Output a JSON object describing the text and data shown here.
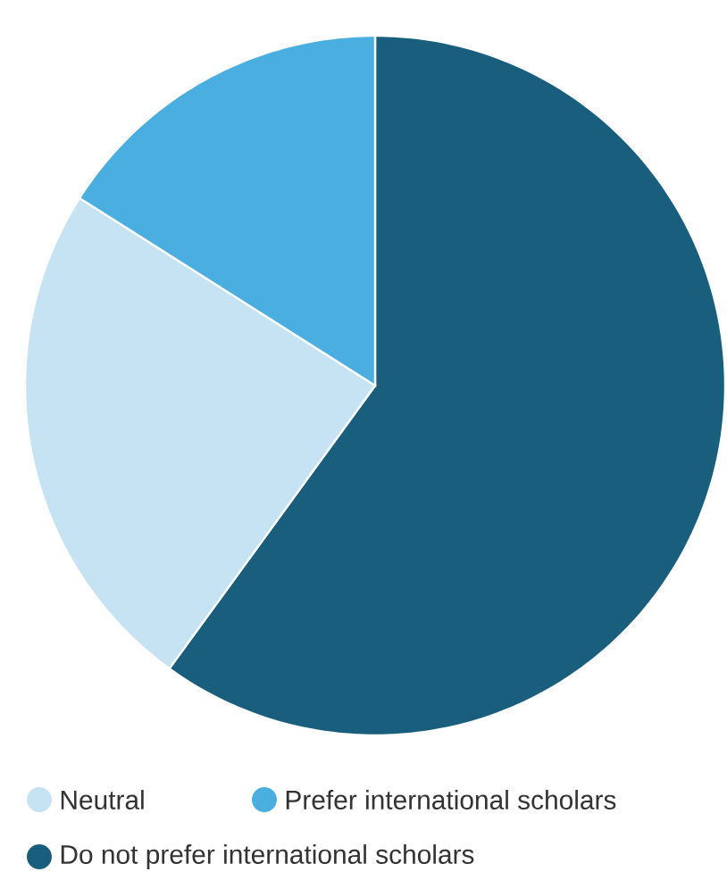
{
  "chart_data": {
    "type": "pie",
    "categories": [
      "Do not prefer international scholars",
      "Neutral",
      "Prefer international scholars"
    ],
    "values": [
      60,
      24,
      16
    ],
    "colors": [
      "#1a5e7e",
      "#c5e3f2",
      "#4aaee0"
    ],
    "legend": "bottom"
  }
}
